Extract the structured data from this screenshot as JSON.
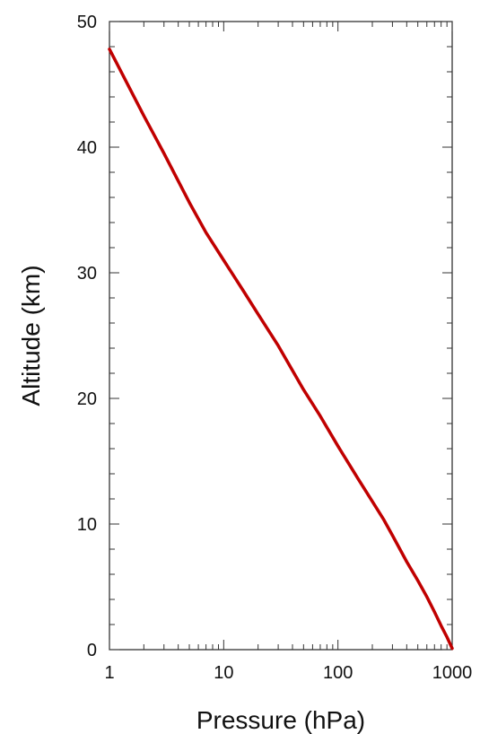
{
  "chart_data": {
    "type": "line",
    "title": "",
    "xlabel": "Pressure (hPa)",
    "ylabel": "Altitude (km)",
    "xscale": "log",
    "xlim": [
      1,
      1000
    ],
    "ylim": [
      0,
      50
    ],
    "x_ticks": [
      {
        "value": 1,
        "label": "1"
      },
      {
        "value": 10,
        "label": "10"
      },
      {
        "value": 100,
        "label": "100"
      },
      {
        "value": 1000,
        "label": "1000"
      }
    ],
    "y_ticks": [
      {
        "value": 0,
        "label": "0"
      },
      {
        "value": 10,
        "label": "10"
      },
      {
        "value": 20,
        "label": "20"
      },
      {
        "value": 30,
        "label": "30"
      },
      {
        "value": 40,
        "label": "40"
      },
      {
        "value": 50,
        "label": "50"
      }
    ],
    "y_minor_step": 2,
    "grid": false,
    "line_color": "#c00000",
    "series": [
      {
        "points": [
          {
            "x": 1,
            "y": 47.8
          },
          {
            "x": 1.5,
            "y": 44.7
          },
          {
            "x": 2,
            "y": 42.5
          },
          {
            "x": 3,
            "y": 39.5
          },
          {
            "x": 5,
            "y": 35.6
          },
          {
            "x": 7,
            "y": 33.2
          },
          {
            "x": 10,
            "y": 31.0
          },
          {
            "x": 15,
            "y": 28.5
          },
          {
            "x": 20,
            "y": 26.7
          },
          {
            "x": 30,
            "y": 24.2
          },
          {
            "x": 50,
            "y": 20.7
          },
          {
            "x": 70,
            "y": 18.6
          },
          {
            "x": 100,
            "y": 16.2
          },
          {
            "x": 150,
            "y": 13.6
          },
          {
            "x": 200,
            "y": 11.8
          },
          {
            "x": 250,
            "y": 10.4
          },
          {
            "x": 300,
            "y": 9.1
          },
          {
            "x": 400,
            "y": 7.0
          },
          {
            "x": 500,
            "y": 5.5
          },
          {
            "x": 600,
            "y": 4.2
          },
          {
            "x": 700,
            "y": 3.0
          },
          {
            "x": 800,
            "y": 1.9
          },
          {
            "x": 900,
            "y": 1.0
          },
          {
            "x": 1000,
            "y": 0.1
          }
        ]
      }
    ]
  }
}
